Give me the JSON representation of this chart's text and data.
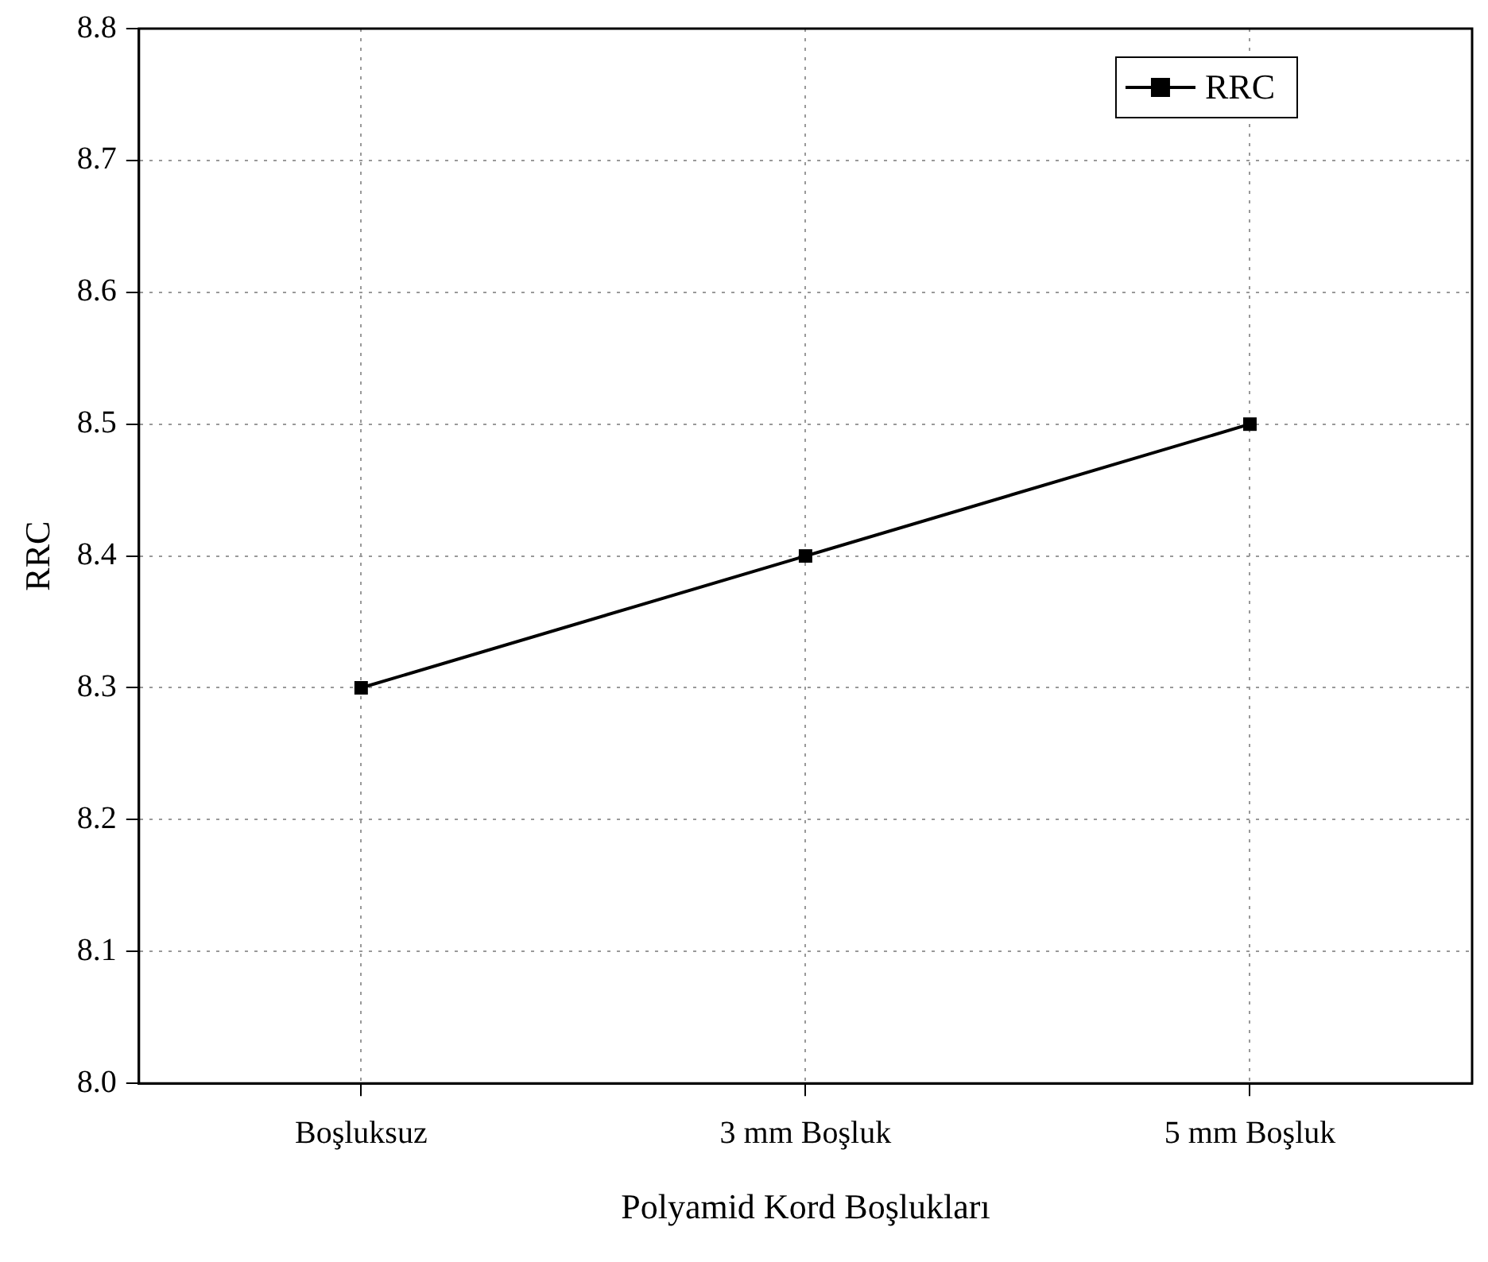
{
  "chart_data": {
    "type": "line",
    "xlabel": "Polyamid Kord Boşlukları",
    "ylabel": "RRC",
    "categories": [
      "Boşluksuz",
      "3 mm Boşluk",
      "5 mm Boşluk"
    ],
    "series": [
      {
        "name": "RRC",
        "color": "#000000",
        "values": [
          8.3,
          8.4,
          8.5
        ]
      }
    ],
    "ylim": [
      8.0,
      8.8
    ],
    "yticks": [
      {
        "value": 8.0,
        "label": "8.0"
      },
      8.1,
      8.2,
      8.3,
      8.4,
      8.5,
      8.6,
      8.7,
      8.8
    ],
    "grid": true,
    "legend": "top right",
    "marker": "square",
    "line_style": "solid"
  }
}
